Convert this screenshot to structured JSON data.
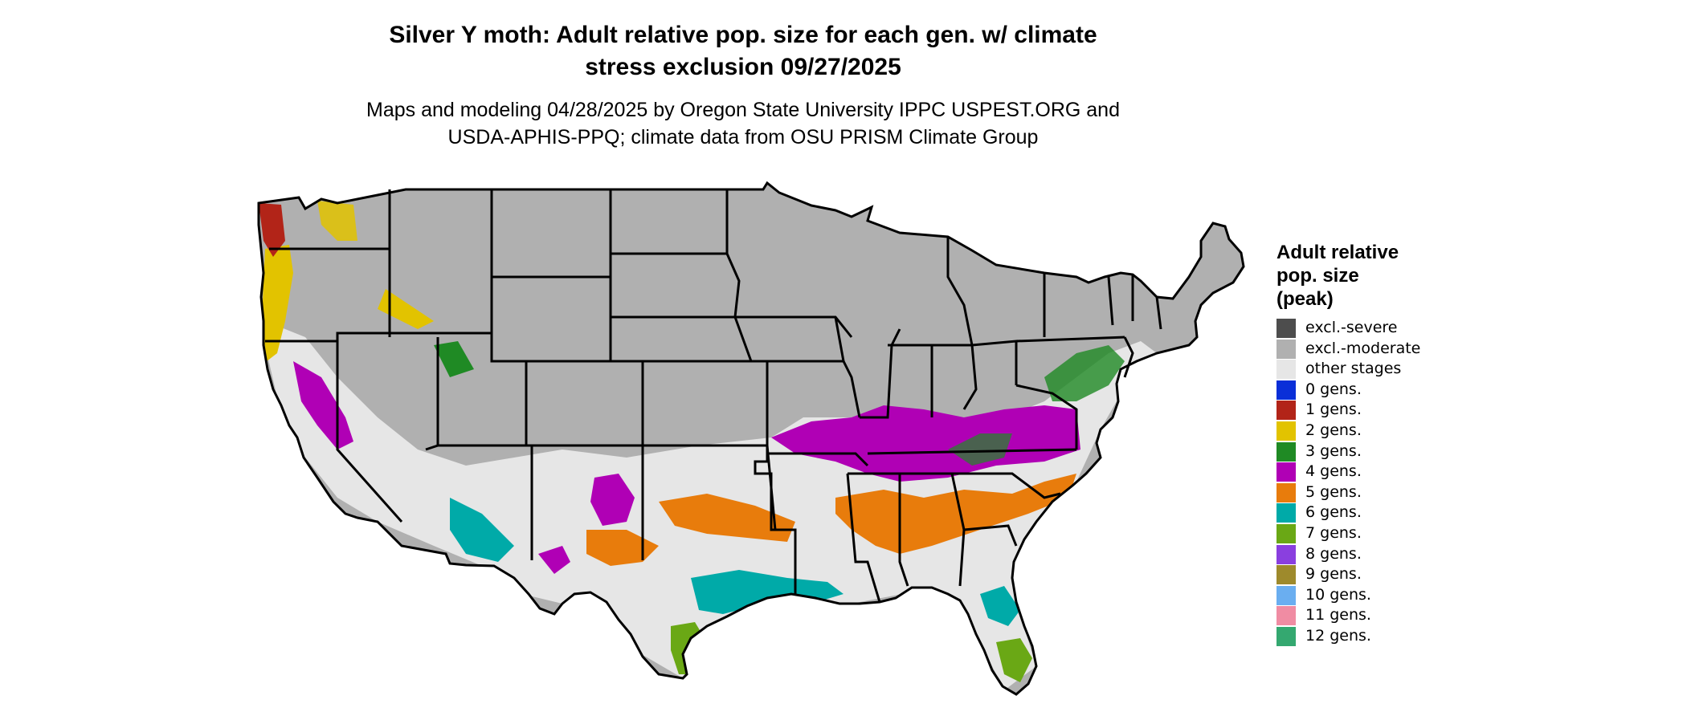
{
  "title_line1": "Silver Y moth: Adult relative pop. size for each gen. w/ climate",
  "title_line2": "stress exclusion 09/27/2025",
  "subtitle_line1": "Maps and modeling 04/28/2025 by Oregon State University IPPC USPEST.ORG and",
  "subtitle_line2": "USDA-APHIS-PPQ; climate data from OSU PRISM Climate Group",
  "legend": {
    "title_line1": "Adult relative",
    "title_line2": "pop. size",
    "title_line3": "(peak)",
    "items": [
      {
        "label": "excl.-severe",
        "color": "#4d4d4d"
      },
      {
        "label": "excl.-moderate",
        "color": "#b0b0b0"
      },
      {
        "label": "other stages",
        "color": "#e6e6e6"
      },
      {
        "label": "0 gens.",
        "color": "#0a2fd8"
      },
      {
        "label": "1 gens.",
        "color": "#b22418"
      },
      {
        "label": "2 gens.",
        "color": "#e2c300"
      },
      {
        "label": "3 gens.",
        "color": "#1f8a24"
      },
      {
        "label": "4 gens.",
        "color": "#b000b5"
      },
      {
        "label": "5 gens.",
        "color": "#e87c0c"
      },
      {
        "label": "6 gens.",
        "color": "#00aaa8"
      },
      {
        "label": "7 gens.",
        "color": "#6aa815"
      },
      {
        "label": "8 gens.",
        "color": "#8a3fdf"
      },
      {
        "label": "9 gens.",
        "color": "#9e8a2c"
      },
      {
        "label": "10 gens.",
        "color": "#6aaef0"
      },
      {
        "label": "11 gens.",
        "color": "#f08ca3"
      },
      {
        "label": "12 gens.",
        "color": "#34a870"
      }
    ]
  }
}
